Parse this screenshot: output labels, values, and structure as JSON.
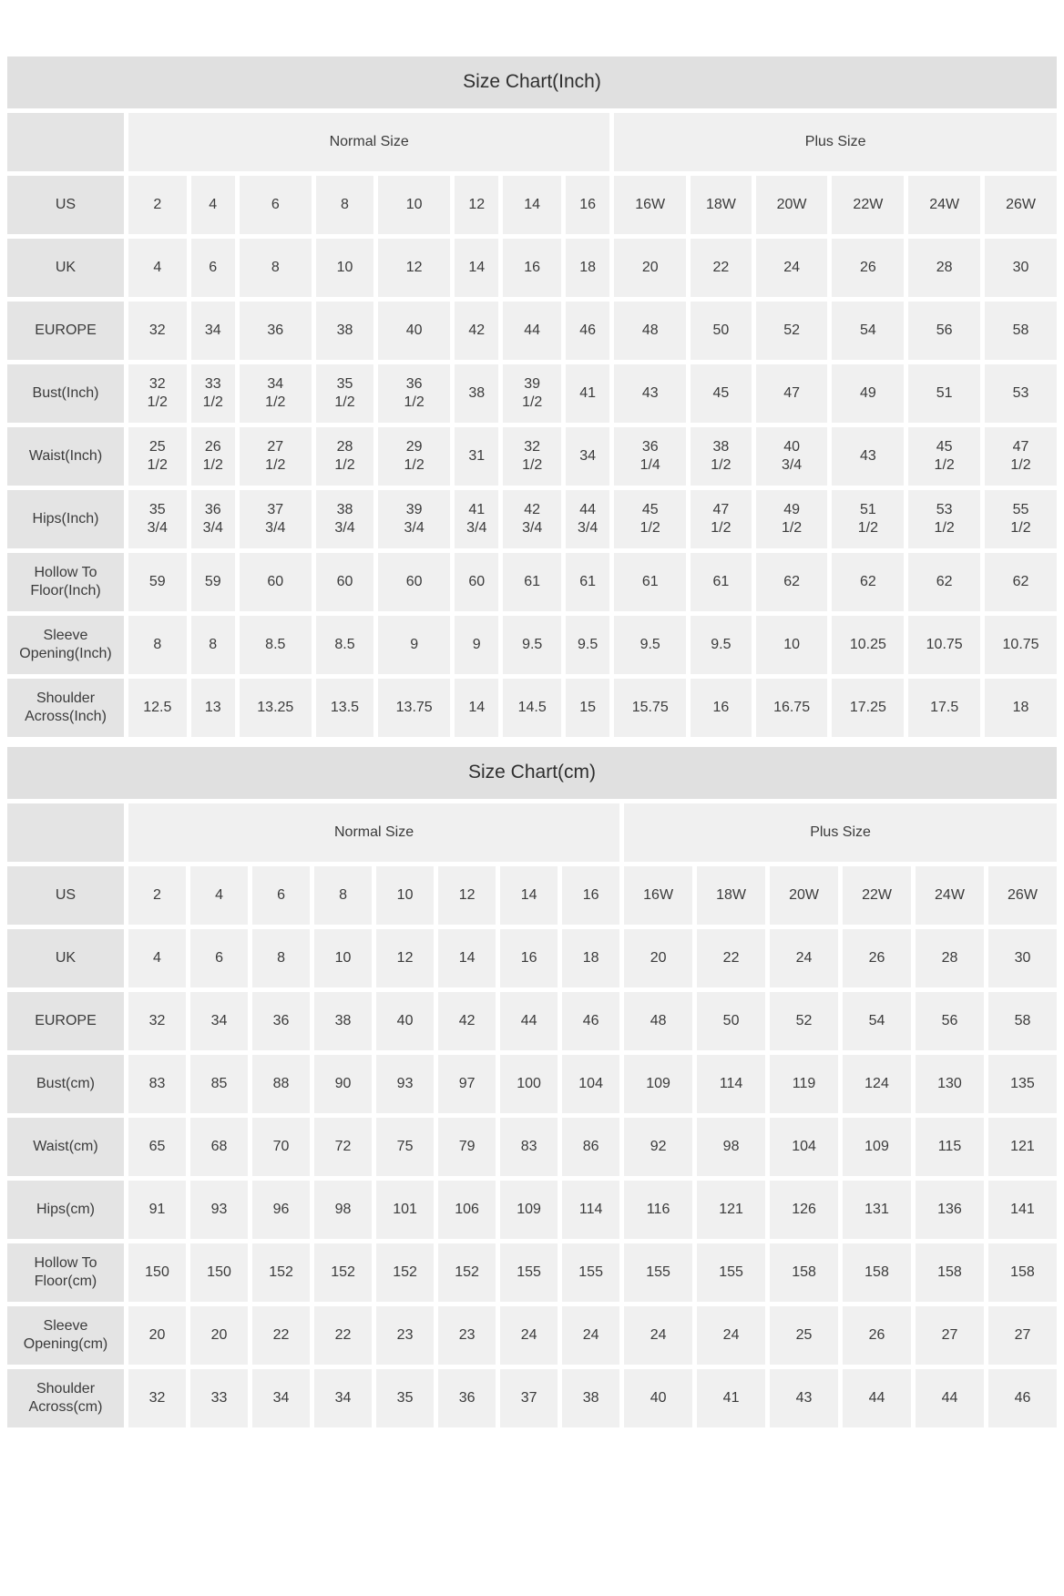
{
  "colors": {
    "title_bar_bg": "#e0e0e0",
    "label_cell_bg": "#e4e4e4",
    "data_cell_bg": "#f0f0f0",
    "text": "#3b3b3b",
    "page_bg": "#ffffff"
  },
  "charts": [
    {
      "title": "Size Chart(Inch)",
      "normal_group_label": "Normal Size",
      "plus_group_label": "Plus Size",
      "normal_span": 8,
      "plus_span": 6,
      "rows": [
        {
          "label": "US",
          "values": [
            "2",
            "4",
            "6",
            "8",
            "10",
            "12",
            "14",
            "16",
            "16W",
            "18W",
            "20W",
            "22W",
            "24W",
            "26W"
          ]
        },
        {
          "label": "UK",
          "values": [
            "4",
            "6",
            "8",
            "10",
            "12",
            "14",
            "16",
            "18",
            "20",
            "22",
            "24",
            "26",
            "28",
            "30"
          ]
        },
        {
          "label": "EUROPE",
          "values": [
            "32",
            "34",
            "36",
            "38",
            "40",
            "42",
            "44",
            "46",
            "48",
            "50",
            "52",
            "54",
            "56",
            "58"
          ]
        },
        {
          "label": "Bust(Inch)",
          "values": [
            "32\n1/2",
            "33\n1/2",
            "34\n1/2",
            "35\n1/2",
            "36\n1/2",
            "38",
            "39\n1/2",
            "41",
            "43",
            "45",
            "47",
            "49",
            "51",
            "53"
          ]
        },
        {
          "label": "Waist(Inch)",
          "values": [
            "25\n1/2",
            "26\n1/2",
            "27\n1/2",
            "28\n1/2",
            "29\n1/2",
            "31",
            "32\n1/2",
            "34",
            "36\n1/4",
            "38\n1/2",
            "40\n3/4",
            "43",
            "45\n1/2",
            "47\n1/2"
          ]
        },
        {
          "label": "Hips(Inch)",
          "values": [
            "35\n3/4",
            "36\n3/4",
            "37\n3/4",
            "38\n3/4",
            "39\n3/4",
            "41\n3/4",
            "42\n3/4",
            "44\n3/4",
            "45\n1/2",
            "47\n1/2",
            "49\n1/2",
            "51\n1/2",
            "53\n1/2",
            "55\n1/2"
          ]
        },
        {
          "label": "Hollow To Floor(Inch)",
          "values": [
            "59",
            "59",
            "60",
            "60",
            "60",
            "60",
            "61",
            "61",
            "61",
            "61",
            "62",
            "62",
            "62",
            "62"
          ]
        },
        {
          "label": "Sleeve Opening(Inch)",
          "values": [
            "8",
            "8",
            "8.5",
            "8.5",
            "9",
            "9",
            "9.5",
            "9.5",
            "9.5",
            "9.5",
            "10",
            "10.25",
            "10.75",
            "10.75"
          ]
        },
        {
          "label": "Shoulder Across(Inch)",
          "values": [
            "12.5",
            "13",
            "13.25",
            "13.5",
            "13.75",
            "14",
            "14.5",
            "15",
            "15.75",
            "16",
            "16.75",
            "17.25",
            "17.5",
            "18"
          ]
        }
      ]
    },
    {
      "title": "Size Chart(cm)",
      "normal_group_label": "Normal Size",
      "plus_group_label": "Plus Size",
      "normal_span": 8,
      "plus_span": 6,
      "rows": [
        {
          "label": "US",
          "values": [
            "2",
            "4",
            "6",
            "8",
            "10",
            "12",
            "14",
            "16",
            "16W",
            "18W",
            "20W",
            "22W",
            "24W",
            "26W"
          ]
        },
        {
          "label": "UK",
          "values": [
            "4",
            "6",
            "8",
            "10",
            "12",
            "14",
            "16",
            "18",
            "20",
            "22",
            "24",
            "26",
            "28",
            "30"
          ]
        },
        {
          "label": "EUROPE",
          "values": [
            "32",
            "34",
            "36",
            "38",
            "40",
            "42",
            "44",
            "46",
            "48",
            "50",
            "52",
            "54",
            "56",
            "58"
          ]
        },
        {
          "label": "Bust(cm)",
          "values": [
            "83",
            "85",
            "88",
            "90",
            "93",
            "97",
            "100",
            "104",
            "109",
            "114",
            "119",
            "124",
            "130",
            "135"
          ]
        },
        {
          "label": "Waist(cm)",
          "values": [
            "65",
            "68",
            "70",
            "72",
            "75",
            "79",
            "83",
            "86",
            "92",
            "98",
            "104",
            "109",
            "115",
            "121"
          ]
        },
        {
          "label": "Hips(cm)",
          "values": [
            "91",
            "93",
            "96",
            "98",
            "101",
            "106",
            "109",
            "114",
            "116",
            "121",
            "126",
            "131",
            "136",
            "141"
          ]
        },
        {
          "label": "Hollow To Floor(cm)",
          "values": [
            "150",
            "150",
            "152",
            "152",
            "152",
            "152",
            "155",
            "155",
            "155",
            "155",
            "158",
            "158",
            "158",
            "158"
          ]
        },
        {
          "label": "Sleeve Opening(cm)",
          "values": [
            "20",
            "20",
            "22",
            "22",
            "23",
            "23",
            "24",
            "24",
            "24",
            "24",
            "25",
            "26",
            "27",
            "27"
          ]
        },
        {
          "label": "Shoulder Across(cm)",
          "values": [
            "32",
            "33",
            "34",
            "34",
            "35",
            "36",
            "37",
            "38",
            "40",
            "41",
            "43",
            "44",
            "44",
            "46"
          ]
        }
      ]
    }
  ]
}
